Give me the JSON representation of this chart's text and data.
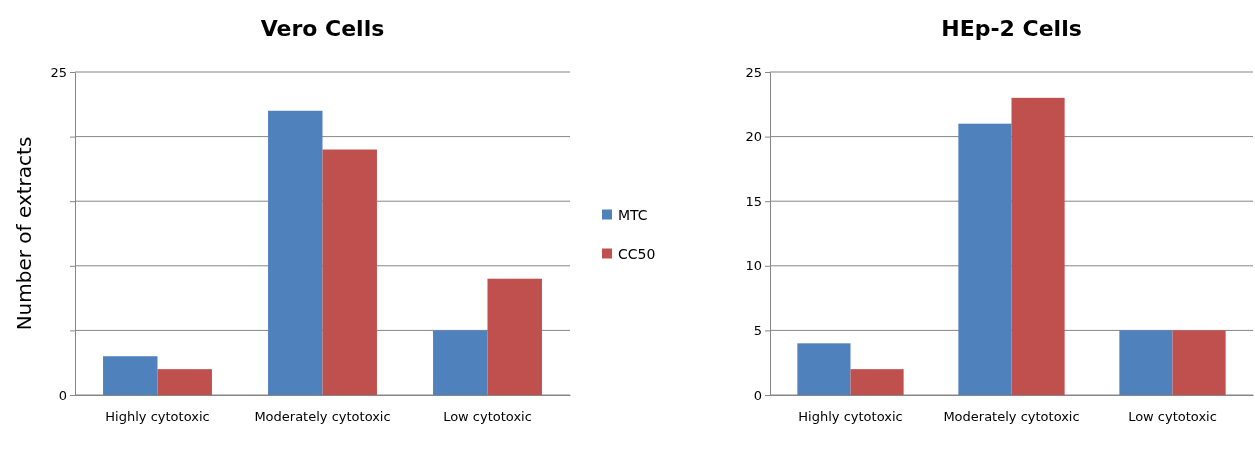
{
  "chart_data": [
    {
      "type": "bar",
      "title": "Vero Cells",
      "ylabel": "Number of extracts",
      "categories": [
        "Highly cytotoxic",
        "Moderately cytotoxic",
        "Low cytotoxic"
      ],
      "series": [
        {
          "name": "MTC",
          "color": "#4f81bd",
          "values": [
            3,
            22,
            5
          ]
        },
        {
          "name": "CC50",
          "color": "#c0504d",
          "values": [
            2,
            19,
            9
          ]
        }
      ],
      "ylim": [
        0,
        25
      ],
      "yticks": [
        0,
        {
          "value": 5,
          "label": null
        },
        {
          "value": 10,
          "label": null
        },
        {
          "value": 15,
          "label": null
        },
        {
          "value": 20,
          "label": null
        },
        25
      ],
      "grid": "y",
      "legend": "right"
    },
    {
      "type": "bar",
      "title": "HEp-2 Cells",
      "categories": [
        "Highly cytotoxic",
        "Moderately cytotoxic",
        "Low cytotoxic"
      ],
      "series": [
        {
          "color": "#4f81bd",
          "values": [
            4,
            21,
            5
          ]
        },
        {
          "color": "#c0504d",
          "values": [
            2,
            23,
            5
          ]
        }
      ],
      "ylim": [
        0,
        25
      ],
      "yticks": [
        0,
        5,
        10,
        15,
        20,
        25
      ],
      "grid": "y"
    }
  ]
}
